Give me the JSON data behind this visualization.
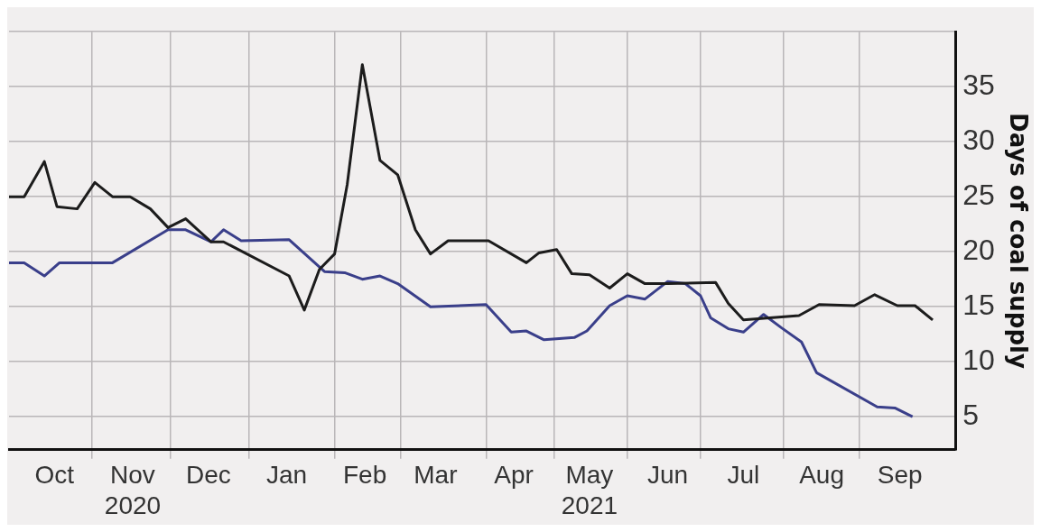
{
  "chart_data": {
    "type": "line",
    "ylabel": "Days of coal supply",
    "xlim": [
      "2020-09-27",
      "2021-10-07"
    ],
    "ylim": [
      2,
      40
    ],
    "yticks": [
      5,
      10,
      15,
      20,
      25,
      30,
      35,
      {
        "value": 40,
        "label": null
      }
    ],
    "xticks": [
      {
        "value": "2020-10-15",
        "label": "Oct"
      },
      {
        "value": "2020-10-30",
        "label": null
      },
      {
        "value": "2020-11-15",
        "label": "Nov\n2020"
      },
      {
        "value": "2020-11-30",
        "label": null
      },
      {
        "value": "2020-12-15",
        "label": "Dec"
      },
      {
        "value": "2020-12-31",
        "label": null
      },
      {
        "value": "2021-01-15",
        "label": "Jan"
      },
      {
        "value": "2021-02-03",
        "label": null
      },
      {
        "value": "2021-02-15",
        "label": "Feb"
      },
      {
        "value": "2021-03-01",
        "label": null
      },
      {
        "value": "2021-03-15",
        "label": "Mar"
      },
      {
        "value": "2021-04-04",
        "label": null
      },
      {
        "value": "2021-04-15",
        "label": "Apr"
      },
      {
        "value": "2021-05-01",
        "label": null
      },
      {
        "value": "2021-05-15",
        "label": "May\n2021"
      },
      {
        "value": "2021-05-30",
        "label": null
      },
      {
        "value": "2021-06-15",
        "label": "Jun"
      },
      {
        "value": "2021-06-28",
        "label": null
      },
      {
        "value": "2021-07-15",
        "label": "Jul"
      },
      {
        "value": "2021-07-31",
        "label": null
      },
      {
        "value": "2021-08-15",
        "label": "Aug"
      },
      {
        "value": "2021-08-30",
        "label": null
      },
      {
        "value": "2021-09-15",
        "label": "Sep"
      }
    ],
    "grid": true,
    "series": [
      {
        "color": "#1c1c1c",
        "x": [
          "2020-09-27",
          "2020-10-03",
          "2020-10-11",
          "2020-10-16",
          "2020-10-24",
          "2020-10-31",
          "2020-11-07",
          "2020-11-14",
          "2020-11-22",
          "2020-11-29",
          "2020-12-06",
          "2020-12-16",
          "2020-12-21",
          "2021-01-16",
          "2021-01-22",
          "2021-01-28",
          "2021-02-03",
          "2021-02-08",
          "2021-02-14",
          "2021-02-21",
          "2021-02-28",
          "2021-03-07",
          "2021-03-13",
          "2021-03-20",
          "2021-04-05",
          "2021-04-20",
          "2021-04-25",
          "2021-05-02",
          "2021-05-08",
          "2021-05-15",
          "2021-05-23",
          "2021-05-30",
          "2021-06-06",
          "2021-06-15",
          "2021-07-04",
          "2021-07-09",
          "2021-07-15",
          "2021-08-06",
          "2021-08-14",
          "2021-08-28",
          "2021-09-05",
          "2021-09-14",
          "2021-09-21",
          "2021-09-28"
        ],
        "values": [
          25.0,
          25.0,
          28.2,
          24.1,
          23.9,
          26.3,
          25.0,
          25.0,
          23.9,
          22.2,
          23.0,
          20.9,
          20.9,
          17.8,
          14.7,
          18.4,
          19.8,
          26.1,
          37.0,
          28.3,
          27.0,
          22.0,
          19.8,
          21.0,
          21.0,
          19.0,
          19.9,
          20.2,
          18.0,
          17.9,
          16.7,
          18.0,
          17.1,
          17.1,
          17.2,
          15.3,
          13.8,
          14.2,
          15.2,
          15.1,
          16.1,
          15.1,
          15.1,
          13.8
        ]
      },
      {
        "color": "#3a3f8a",
        "x": [
          "2020-09-27",
          "2020-10-03",
          "2020-10-11",
          "2020-10-17",
          "2020-11-07",
          "2020-11-29",
          "2020-12-06",
          "2020-12-16",
          "2020-12-21",
          "2020-12-28",
          "2021-01-16",
          "2021-01-30",
          "2021-02-07",
          "2021-02-14",
          "2021-02-21",
          "2021-02-28",
          "2021-03-13",
          "2021-04-04",
          "2021-04-14",
          "2021-04-20",
          "2021-04-27",
          "2021-05-09",
          "2021-05-14",
          "2021-05-23",
          "2021-05-30",
          "2021-06-06",
          "2021-06-15",
          "2021-06-22",
          "2021-06-28",
          "2021-07-02",
          "2021-07-09",
          "2021-07-15",
          "2021-07-23",
          "2021-07-30",
          "2021-08-07",
          "2021-08-13",
          "2021-09-06",
          "2021-09-13",
          "2021-09-20"
        ],
        "values": [
          19.0,
          19.0,
          17.8,
          19.0,
          19.0,
          22.0,
          22.0,
          20.9,
          22.0,
          21.0,
          21.1,
          18.2,
          18.1,
          17.5,
          17.8,
          17.1,
          15.0,
          15.2,
          12.7,
          12.8,
          12.0,
          12.2,
          12.8,
          15.1,
          16.0,
          15.7,
          17.3,
          17.1,
          16.0,
          14.0,
          13.0,
          12.7,
          14.3,
          13.1,
          11.8,
          9.0,
          5.9,
          5.8,
          5.0
        ]
      }
    ]
  }
}
